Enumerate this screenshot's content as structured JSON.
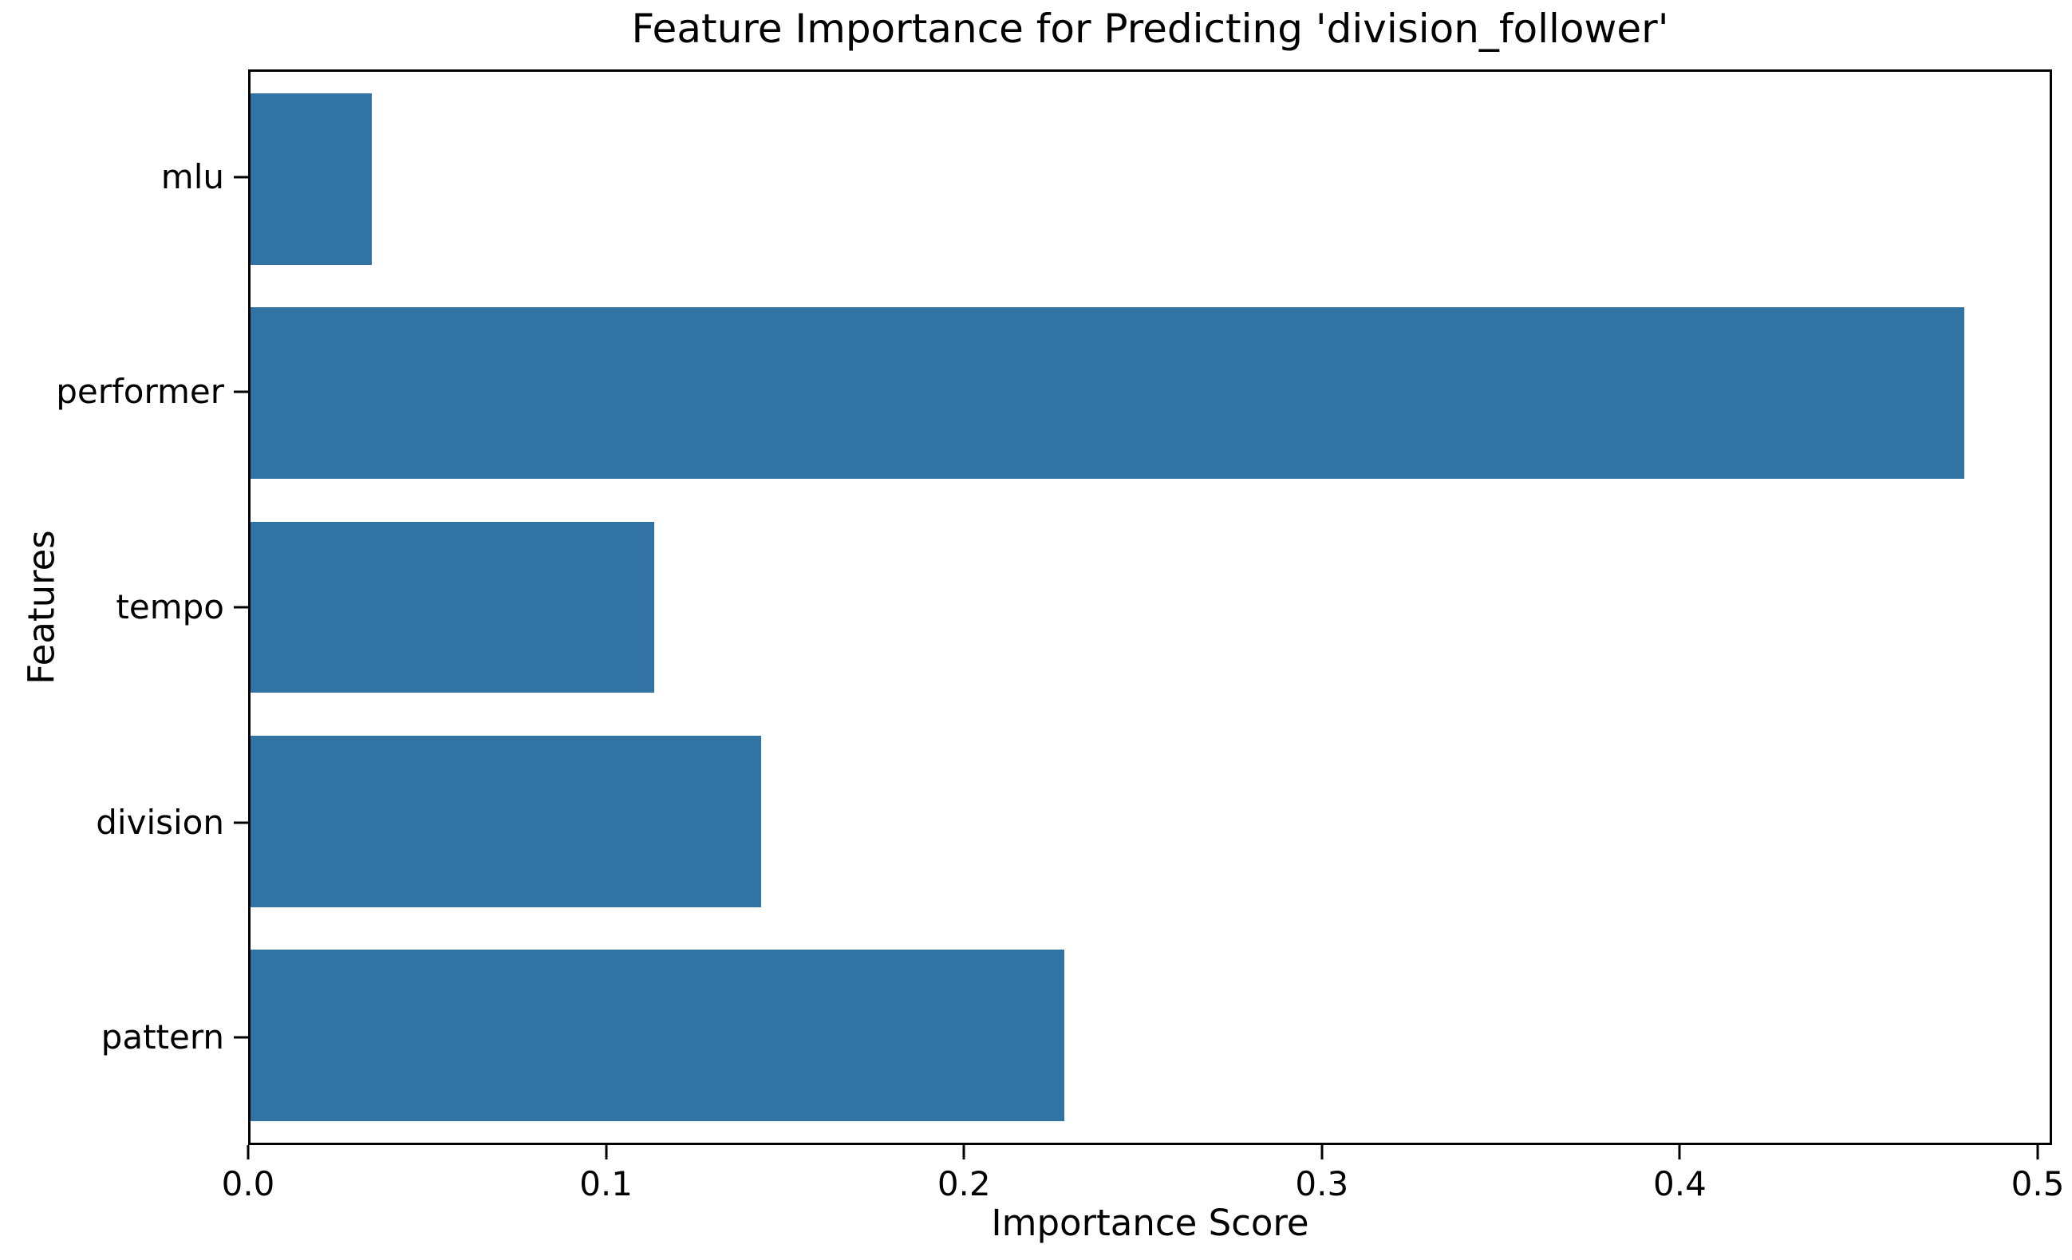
{
  "chart_data": {
    "type": "bar",
    "orientation": "horizontal",
    "title": "Feature Importance for Predicting 'division_follower'",
    "xlabel": "Importance Score",
    "ylabel": "Features",
    "categories": [
      "mlu",
      "performer",
      "tempo",
      "division",
      "pattern"
    ],
    "values": [
      0.034,
      0.48,
      0.113,
      0.143,
      0.228
    ],
    "xlim": [
      0,
      0.504
    ],
    "x_ticks": [
      0,
      0.1,
      0.2,
      0.3,
      0.4,
      0.5
    ],
    "x_tick_labels": [
      "0.0",
      "0.1",
      "0.2",
      "0.3",
      "0.4",
      "0.5"
    ],
    "bar_color": "#3174a4",
    "axis_color": "#000000",
    "background_color": "#ffffff",
    "bar_rel_height": 0.8,
    "grid": false,
    "legend": false
  }
}
